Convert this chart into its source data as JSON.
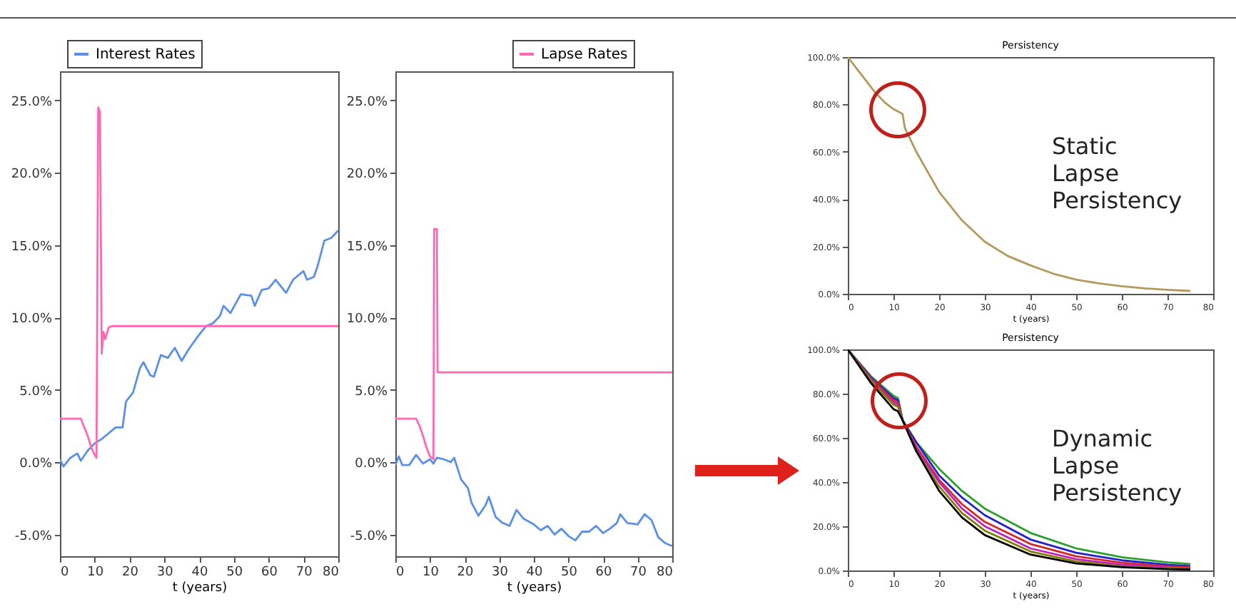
{
  "chart_data": [
    {
      "type": "line",
      "xlabel": "t (years)",
      "xlim": [
        0,
        80
      ],
      "xticks": [
        0,
        10,
        20,
        30,
        40,
        50,
        60,
        70,
        80
      ],
      "ylim": [
        -6.5,
        27
      ],
      "yticks": [
        {
          "value": -5,
          "label": "-5.0%"
        },
        {
          "value": 0,
          "label": "0.0%"
        },
        {
          "value": 5,
          "label": "5.0%"
        },
        {
          "value": 10,
          "label": "10.0%"
        },
        {
          "value": 15,
          "label": "15.0%"
        },
        {
          "value": 20,
          "label": "20.0%"
        },
        {
          "value": 25,
          "label": "25.0%"
        }
      ],
      "legend": "top left",
      "series": [
        {
          "name": "Interest Rates",
          "color": "#5b8fe8",
          "x": [
            0,
            1,
            3,
            5,
            6,
            8,
            10,
            12,
            14,
            16,
            18,
            19,
            21,
            23,
            24,
            26,
            27,
            29,
            31,
            33,
            35,
            37,
            40,
            42,
            44,
            46,
            47,
            49,
            52,
            55,
            56,
            58,
            60,
            62,
            65,
            67,
            70,
            71,
            73,
            74,
            76,
            78,
            80
          ],
          "values": [
            0.2,
            -0.3,
            0.3,
            0.6,
            0.1,
            0.8,
            1.3,
            1.6,
            2.0,
            2.4,
            2.4,
            4.2,
            4.8,
            6.5,
            6.9,
            6.0,
            5.9,
            7.4,
            7.2,
            7.9,
            7.0,
            7.8,
            8.8,
            9.4,
            9.6,
            10.1,
            10.8,
            10.3,
            11.6,
            11.5,
            10.8,
            11.9,
            12.0,
            12.6,
            11.7,
            12.6,
            13.2,
            12.6,
            12.8,
            13.5,
            15.3,
            15.5,
            16.0
          ]
        },
        {
          "color": "#ff69b4",
          "x": [
            0,
            6,
            7,
            8,
            9,
            10,
            10.5,
            11,
            11.5,
            12,
            12.5,
            13,
            14,
            15,
            80
          ],
          "values": [
            3.0,
            3.0,
            2.4,
            1.8,
            1.0,
            0.5,
            0.3,
            24.5,
            24.2,
            7.5,
            9.0,
            8.5,
            9.3,
            9.4,
            9.4
          ]
        }
      ]
    },
    {
      "type": "line",
      "xlabel": "t (years)",
      "xlim": [
        0,
        80
      ],
      "xticks": [
        0,
        10,
        20,
        30,
        40,
        50,
        60,
        70,
        80
      ],
      "ylim": [
        -6.5,
        27
      ],
      "yticks": [
        {
          "value": -5,
          "label": "-5.0%"
        },
        {
          "value": 0,
          "label": "0.0%"
        },
        {
          "value": 5,
          "label": "5.0%"
        },
        {
          "value": 10,
          "label": "10.0%"
        },
        {
          "value": 15,
          "label": "15.0%"
        },
        {
          "value": 20,
          "label": "20.0%"
        },
        {
          "value": 25,
          "label": "25.0%"
        }
      ],
      "legend": "top right",
      "series": [
        {
          "color": "#5b8fe8",
          "x": [
            0,
            1,
            2,
            4,
            6,
            8,
            10,
            11,
            12,
            14,
            16,
            17,
            19,
            21,
            22,
            24,
            26,
            27,
            29,
            31,
            33,
            35,
            37,
            40,
            42,
            44,
            46,
            48,
            50,
            52,
            54,
            56,
            58,
            60,
            62,
            64,
            65,
            67,
            70,
            72,
            74,
            76,
            78,
            80
          ],
          "values": [
            -0.2,
            0.4,
            -0.2,
            -0.2,
            0.5,
            -0.1,
            0.2,
            -0.1,
            0.3,
            0.2,
            0.0,
            0.3,
            -1.2,
            -1.8,
            -2.8,
            -3.7,
            -3.0,
            -2.4,
            -3.8,
            -4.2,
            -4.4,
            -3.3,
            -3.9,
            -4.3,
            -4.7,
            -4.4,
            -5.0,
            -4.6,
            -5.1,
            -5.4,
            -4.8,
            -4.8,
            -4.4,
            -4.9,
            -4.6,
            -4.2,
            -3.6,
            -4.2,
            -4.3,
            -3.6,
            -4.0,
            -5.2,
            -5.6,
            -5.8
          ]
        },
        {
          "name": "Lapse Rates",
          "color": "#ff69b4",
          "x": [
            0,
            6,
            7,
            8,
            9,
            10,
            11,
            11.2,
            12,
            12.2,
            80
          ],
          "values": [
            3.0,
            3.0,
            2.5,
            1.8,
            1.0,
            0.4,
            0.2,
            16.1,
            16.1,
            6.2,
            6.2
          ]
        }
      ]
    },
    {
      "type": "line",
      "title": "Persistency",
      "xlabel": "t (years)",
      "xlim": [
        0,
        80
      ],
      "xticks": [
        0,
        10,
        20,
        30,
        40,
        50,
        60,
        70,
        80
      ],
      "ylim": [
        0,
        100
      ],
      "yticks": [
        {
          "value": 0,
          "label": "0.0%"
        },
        {
          "value": 20,
          "label": "20.0%"
        },
        {
          "value": 40,
          "label": "40.0%"
        },
        {
          "value": 60,
          "label": "60.0%"
        },
        {
          "value": 80,
          "label": "80.0%"
        },
        {
          "value": 100,
          "label": "100.0%"
        }
      ],
      "annotations": [
        "Static Lapse Persistency"
      ],
      "series": [
        {
          "color": "#b49a5a",
          "x": [
            0,
            2,
            4,
            6,
            8,
            10,
            11,
            12,
            12.5,
            15,
            20,
            25,
            30,
            35,
            40,
            45,
            50,
            55,
            60,
            65,
            70,
            75
          ],
          "values": [
            100,
            95,
            90,
            85,
            81,
            78,
            77,
            76,
            70,
            60,
            43,
            31,
            22,
            16,
            12,
            8.5,
            6,
            4.4,
            3.2,
            2.3,
            1.7,
            1.2
          ]
        }
      ]
    },
    {
      "type": "line",
      "title": "Persistency",
      "xlabel": "t (years)",
      "xlim": [
        0,
        80
      ],
      "xticks": [
        0,
        10,
        20,
        30,
        40,
        50,
        60,
        70,
        80
      ],
      "ylim": [
        0,
        100
      ],
      "yticks": [
        {
          "value": 0,
          "label": "0.0%"
        },
        {
          "value": 20,
          "label": "20.0%"
        },
        {
          "value": 40,
          "label": "40.0%"
        },
        {
          "value": 60,
          "label": "60.0%"
        },
        {
          "value": 80,
          "label": "80.0%"
        },
        {
          "value": 100,
          "label": "100.0%"
        }
      ],
      "annotations": [
        "Dynamic Lapse Persistency"
      ],
      "x": [
        0,
        5,
        10,
        11,
        12,
        15,
        20,
        25,
        30,
        40,
        50,
        60,
        70,
        75
      ],
      "series": [
        {
          "color": "#2ca02c",
          "values": [
            100,
            88,
            79,
            78,
            68,
            58,
            46,
            36,
            28,
            17,
            10,
            6,
            3.7,
            2.9
          ]
        },
        {
          "color": "#1f1fd0",
          "values": [
            100,
            87.5,
            78,
            77,
            68,
            58,
            43,
            33,
            25,
            14,
            8,
            4.6,
            2.6,
            2.0
          ]
        },
        {
          "color": "#d62728",
          "values": [
            100,
            87,
            77,
            76,
            68,
            56,
            41,
            30,
            22,
            12,
            6.4,
            3.5,
            1.9,
            1.4
          ]
        },
        {
          "color": "#c020c0",
          "values": [
            100,
            86.5,
            76,
            75,
            68,
            55,
            40,
            28,
            20,
            10,
            5.1,
            2.6,
            1.3,
            0.9
          ]
        },
        {
          "color": "#808000",
          "values": [
            100,
            86,
            75,
            74,
            68,
            54,
            38,
            26,
            18,
            8.6,
            4.1,
            1.9,
            0.9,
            0.6
          ]
        },
        {
          "color": "#000000",
          "values": [
            100,
            85,
            73,
            72,
            68,
            54,
            36,
            24,
            16,
            7.2,
            3.2,
            1.5,
            0.6,
            0.4
          ]
        }
      ]
    }
  ]
}
